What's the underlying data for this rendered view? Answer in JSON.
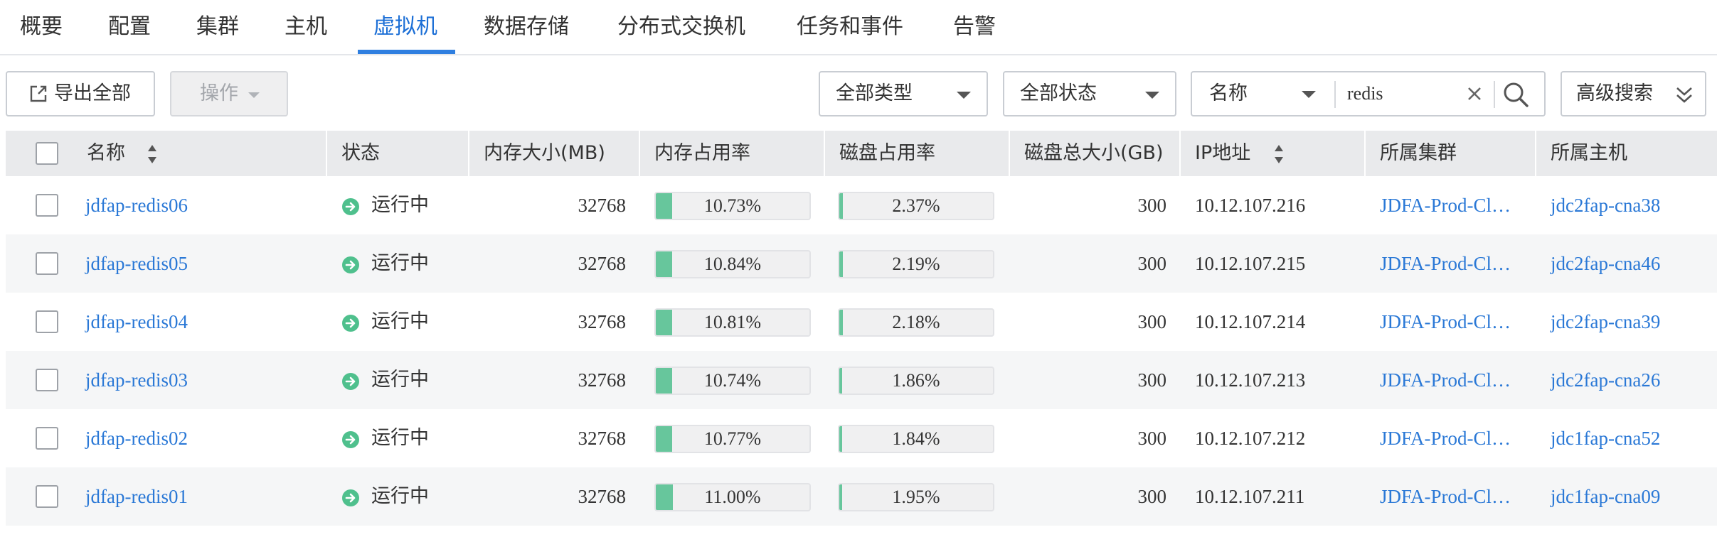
{
  "nav": {
    "tabs": [
      {
        "label": "概要"
      },
      {
        "label": "配置"
      },
      {
        "label": "集群"
      },
      {
        "label": "主机"
      },
      {
        "label": "虚拟机",
        "active": true
      },
      {
        "label": "数据存储"
      },
      {
        "label": "分布式交换机"
      },
      {
        "label": "任务和事件"
      },
      {
        "label": "告警"
      }
    ]
  },
  "toolbar": {
    "export_label": "导出全部",
    "operations_label": "操作",
    "type_filter": "全部类型",
    "status_filter": "全部状态",
    "search_field": "名称",
    "search_value": "redis",
    "advanced_label": "高级搜索"
  },
  "table": {
    "columns": {
      "name": "名称",
      "status": "状态",
      "memory_size": "内存大小(MB)",
      "memory_usage": "内存占用率",
      "disk_usage": "磁盘占用率",
      "disk_total": "磁盘总大小(GB)",
      "ip": "IP地址",
      "cluster": "所属集群",
      "host": "所属主机"
    },
    "rows": [
      {
        "name": "jdfap-redis06",
        "status": "运行中",
        "memory": "32768",
        "mem_usage": "10.73%",
        "mem_pct": 10.73,
        "disk_usage": "2.37%",
        "disk_pct": 2.37,
        "disk_total": "300",
        "ip": "10.12.107.216",
        "cluster": "JDFA-Prod-Cl…",
        "host": "jdc2fap-cna38"
      },
      {
        "name": "jdfap-redis05",
        "status": "运行中",
        "memory": "32768",
        "mem_usage": "10.84%",
        "mem_pct": 10.84,
        "disk_usage": "2.19%",
        "disk_pct": 2.19,
        "disk_total": "300",
        "ip": "10.12.107.215",
        "cluster": "JDFA-Prod-Cl…",
        "host": "jdc2fap-cna46"
      },
      {
        "name": "jdfap-redis04",
        "status": "运行中",
        "memory": "32768",
        "mem_usage": "10.81%",
        "mem_pct": 10.81,
        "disk_usage": "2.18%",
        "disk_pct": 2.18,
        "disk_total": "300",
        "ip": "10.12.107.214",
        "cluster": "JDFA-Prod-Cl…",
        "host": "jdc2fap-cna39"
      },
      {
        "name": "jdfap-redis03",
        "status": "运行中",
        "memory": "32768",
        "mem_usage": "10.74%",
        "mem_pct": 10.74,
        "disk_usage": "1.86%",
        "disk_pct": 1.86,
        "disk_total": "300",
        "ip": "10.12.107.213",
        "cluster": "JDFA-Prod-Cl…",
        "host": "jdc2fap-cna26"
      },
      {
        "name": "jdfap-redis02",
        "status": "运行中",
        "memory": "32768",
        "mem_usage": "10.77%",
        "mem_pct": 10.77,
        "disk_usage": "1.84%",
        "disk_pct": 1.84,
        "disk_total": "300",
        "ip": "10.12.107.212",
        "cluster": "JDFA-Prod-Cl…",
        "host": "jdc1fap-cna52"
      },
      {
        "name": "jdfap-redis01",
        "status": "运行中",
        "memory": "32768",
        "mem_usage": "11.00%",
        "mem_pct": 11.0,
        "disk_usage": "1.95%",
        "disk_pct": 1.95,
        "disk_total": "300",
        "ip": "10.12.107.211",
        "cluster": "JDFA-Prod-Cl…",
        "host": "jdc1fap-cna09"
      }
    ]
  },
  "colors": {
    "link": "#2a78d6",
    "active_tab": "#1c6fd6",
    "progress_fill": "#67c69c",
    "status_running": "#4fc08d"
  },
  "icons": {
    "export": "export-icon",
    "search": "search-icon",
    "clear": "close-icon",
    "advanced": "double-chevron-down-icon",
    "status": "running-status-icon",
    "sort": "sort-icon"
  }
}
